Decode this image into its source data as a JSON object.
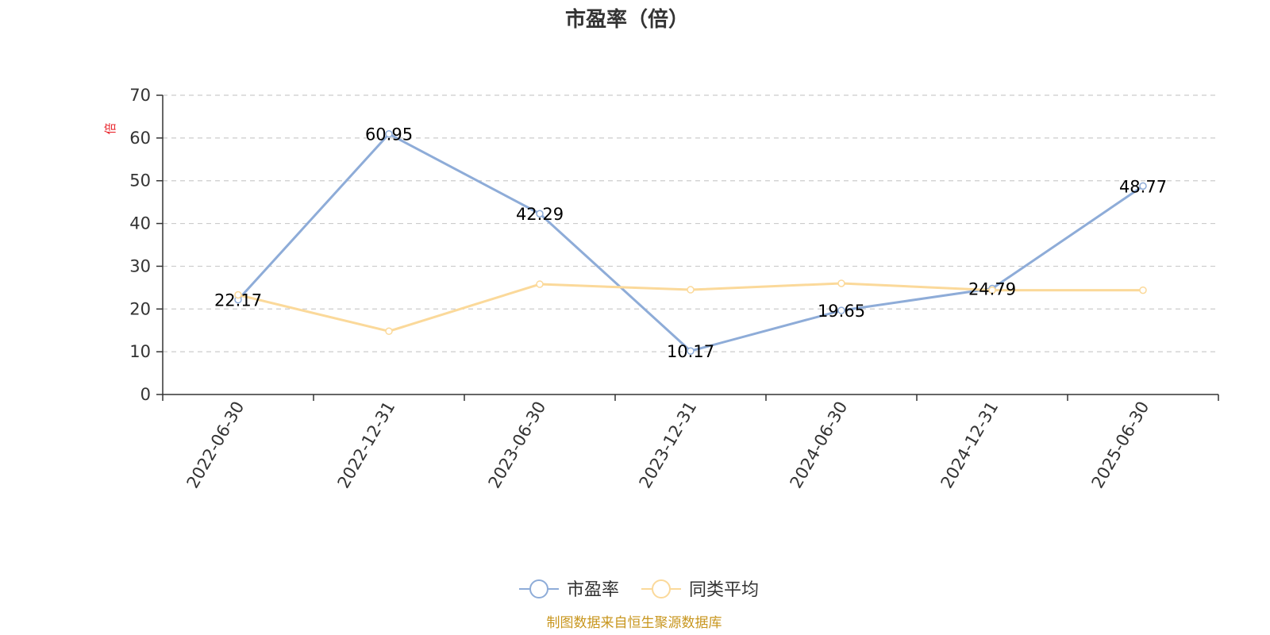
{
  "chart_data": {
    "type": "line",
    "title": "市盈率（倍）",
    "ylabel": "倍",
    "categories": [
      "2022-06-30",
      "2022-12-31",
      "2023-06-30",
      "2023-12-31",
      "2024-06-30",
      "2024-12-31",
      "2025-06-30"
    ],
    "ylim": [
      0,
      70
    ],
    "yticks": [
      0,
      10,
      20,
      30,
      40,
      50,
      60,
      70
    ],
    "grid": "horizontal dashed",
    "legend_position": "bottom-center",
    "series": [
      {
        "name": "市盈率",
        "color": "#8eacd8",
        "values": [
          22.17,
          60.95,
          42.29,
          10.17,
          19.65,
          24.79,
          48.77
        ],
        "labels": [
          "22.17",
          "60.95",
          "42.29",
          "10.17",
          "19.65",
          "24.79",
          "48.77"
        ]
      },
      {
        "name": "同类平均",
        "color": "#fbd99a",
        "values": [
          23.3,
          14.8,
          25.8,
          24.5,
          26.0,
          24.4,
          24.4
        ]
      }
    ]
  },
  "footer": {
    "source": "制图数据来自恒生聚源数据库",
    "source_color": "#c8961e"
  },
  "unit_color": "#e8242b"
}
